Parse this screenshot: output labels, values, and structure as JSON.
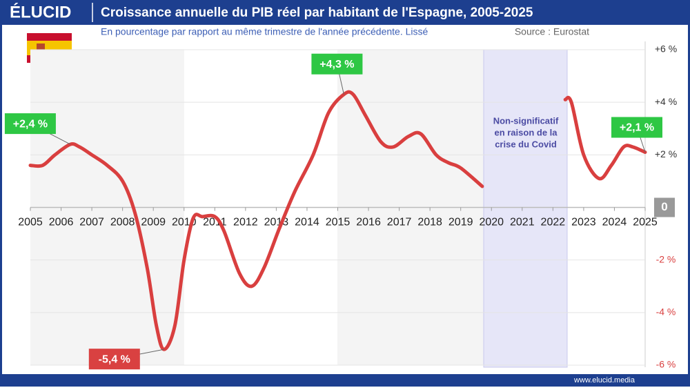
{
  "header": {
    "logo": "ÉLUCID",
    "footer": "www.elucid.media"
  },
  "chart_data": {
    "type": "line",
    "title": "Croissance annuelle du PIB réel par habitant de l'Espagne, 2005-2025",
    "subtitle": "En pourcentage par rapport au même trimestre de l'année précédente. Lissé",
    "source": "Source : Eurostat",
    "color": "#d93f3f",
    "x": [
      2005.0,
      2005.4,
      2005.8,
      2006.3,
      2006.6,
      2007.0,
      2007.5,
      2008.0,
      2008.4,
      2008.8,
      2009.1,
      2009.35,
      2009.7,
      2010.0,
      2010.3,
      2010.6,
      2011.0,
      2011.3,
      2011.8,
      2012.2,
      2012.6,
      2013.1,
      2013.6,
      2014.2,
      2014.7,
      2015.2,
      2015.5,
      2015.9,
      2016.4,
      2016.8,
      2017.3,
      2017.7,
      2018.2,
      2018.6,
      2019.0,
      2019.7,
      2021.0,
      2022.4,
      2022.6,
      2023.0,
      2023.5,
      2023.9,
      2024.3,
      2024.6,
      2025.0
    ],
    "values": [
      1.6,
      1.6,
      2.0,
      2.4,
      2.3,
      2.0,
      1.6,
      1.0,
      -0.2,
      -2.3,
      -4.5,
      -5.4,
      -4.5,
      -2.0,
      -0.4,
      -0.35,
      -0.35,
      -0.9,
      -2.5,
      -3.0,
      -2.3,
      -0.8,
      0.6,
      2.0,
      3.6,
      4.3,
      4.3,
      3.5,
      2.5,
      2.3,
      2.7,
      2.8,
      2.0,
      1.7,
      1.5,
      0.8,
      null,
      4.1,
      4.0,
      2.0,
      1.1,
      1.6,
      2.3,
      2.3,
      2.1
    ],
    "value_labels": [
      null,
      null,
      null,
      "+2,4 %",
      null,
      null,
      null,
      null,
      null,
      null,
      null,
      "-5,4 %",
      null,
      null,
      null,
      null,
      null,
      null,
      null,
      null,
      null,
      null,
      null,
      null,
      null,
      "+4,3 %",
      null,
      null,
      null,
      null,
      null,
      null,
      null,
      null,
      null,
      null,
      null,
      null,
      null,
      null,
      null,
      null,
      null,
      null,
      "+2,1 %"
    ],
    "xlim": [
      2005,
      2025
    ],
    "xticks": [
      2005,
      2006,
      2007,
      2008,
      2009,
      2010,
      2011,
      2012,
      2013,
      2014,
      2015,
      2016,
      2017,
      2018,
      2019,
      2020,
      2021,
      2022,
      2023,
      2024,
      2025
    ],
    "ylim": [
      -6,
      6
    ],
    "yticks": [
      {
        "value": 6,
        "label": "+6 %"
      },
      {
        "value": 4,
        "label": "+4 %"
      },
      {
        "value": 2,
        "label": "+2 %"
      },
      0,
      {
        "value": -2,
        "label": "-2 %"
      },
      {
        "value": -4,
        "label": "-4 %"
      },
      {
        "value": -6,
        "label": "-6 %"
      }
    ],
    "grid": true,
    "annotation": [
      "Non-significatif",
      "en raison de la",
      "crise du Covid"
    ]
  }
}
